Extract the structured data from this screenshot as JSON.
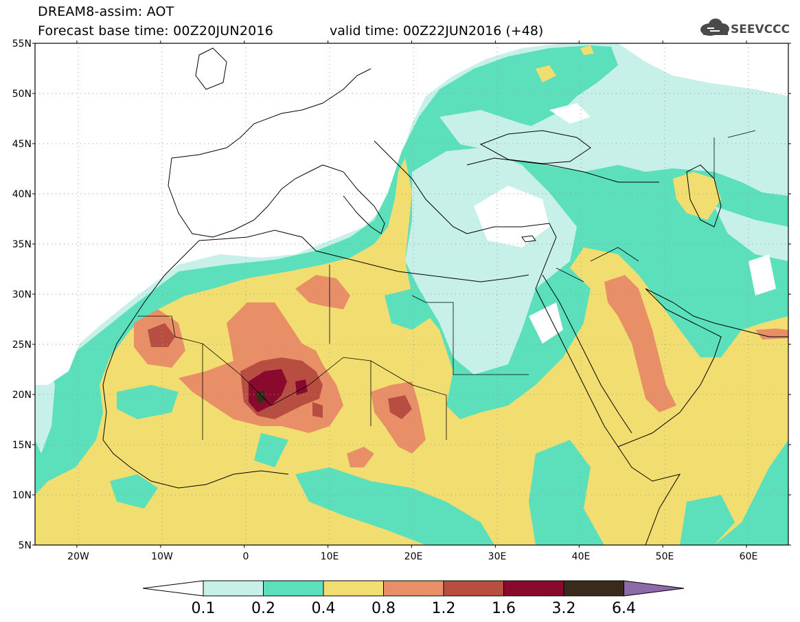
{
  "header": {
    "title": "DREAM8-assim: AOT",
    "base_time": "Forecast base time: 00Z20JUN2016",
    "valid_time": "valid time: 00Z22JUN2016 (+48)",
    "logo_text": "SEEVCCC"
  },
  "map": {
    "lon_range": [
      -25,
      65
    ],
    "lat_range": [
      5,
      55
    ],
    "lat_ticks": [
      "5N",
      "10N",
      "15N",
      "20N",
      "25N",
      "30N",
      "35N",
      "40N",
      "45N",
      "50N",
      "55N"
    ],
    "lon_ticks": [
      "20W",
      "10W",
      "0",
      "10E",
      "20E",
      "30E",
      "40E",
      "50E",
      "60E"
    ]
  },
  "colorbar": {
    "labels": [
      "0.1",
      "0.2",
      "0.4",
      "0.8",
      "1.2",
      "1.6",
      "3.2",
      "6.4"
    ],
    "colors": [
      "#c6f0e8",
      "#5ce0bc",
      "#f2de70",
      "#e88f68",
      "#b84e42",
      "#8a0a2e",
      "#3a2a1c"
    ],
    "extend_colors": {
      "below": "#ffffff",
      "above": "#8e6aa8"
    }
  },
  "colors": {
    "lvl1": "#c6f0e8",
    "lvl2": "#5ce0bc",
    "lvl3": "#f2de70",
    "lvl4": "#e88f68",
    "lvl5": "#b84e42",
    "lvl6": "#8a0a2e",
    "lvl7": "#3a2a1c"
  }
}
